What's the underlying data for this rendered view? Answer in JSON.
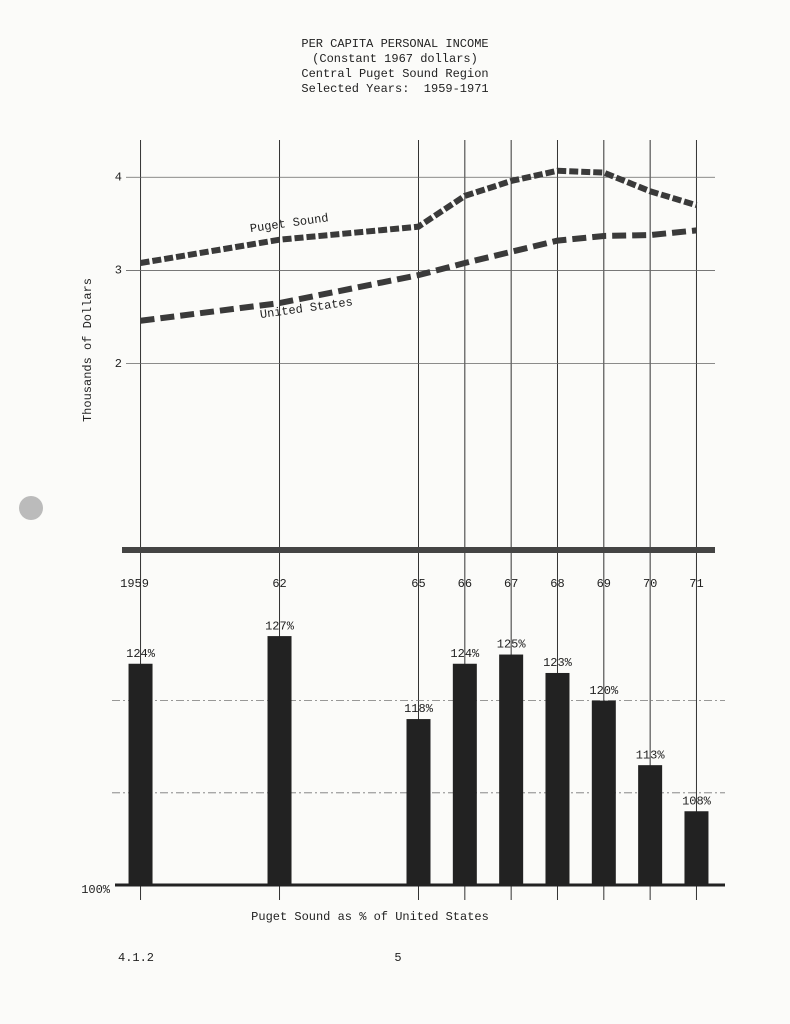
{
  "chart_data": [
    {
      "type": "line",
      "title": "PER CAPITA PERSONAL INCOME",
      "subtitle": [
        "(Constant 1967 dollars)",
        "Central Puget Sound Region",
        "Selected Years:  1959-1971"
      ],
      "ylabel": "Thousands of Dollars",
      "x": [
        1959,
        1962,
        1965,
        1966,
        1967,
        1968,
        1969,
        1970,
        1971
      ],
      "xlim": [
        1958.6,
        1971.4
      ],
      "xticks": [
        1959,
        {
          "value": 1962,
          "label": "62"
        },
        {
          "value": 1965,
          "label": "65"
        },
        {
          "value": 1966,
          "label": "66"
        },
        {
          "value": 1967,
          "label": "67"
        },
        {
          "value": 1968,
          "label": "68"
        },
        {
          "value": 1969,
          "label": "69"
        },
        {
          "value": 1970,
          "label": "70"
        },
        {
          "value": 1971,
          "label": "71"
        }
      ],
      "ylim": [
        0,
        4.4
      ],
      "yticks": [
        2,
        3,
        4
      ],
      "grid": true,
      "series": [
        {
          "name": "Puget Sound",
          "color": "#3a3a3a",
          "values": [
            3.08,
            3.33,
            3.47,
            3.8,
            3.96,
            4.07,
            4.05,
            3.85,
            3.7
          ]
        },
        {
          "name": "United States",
          "color": "#3a3a3a",
          "values": [
            2.46,
            2.65,
            2.95,
            3.08,
            3.2,
            3.32,
            3.37,
            3.38,
            3.43
          ]
        }
      ]
    },
    {
      "type": "bar",
      "xlabel": "Puget Sound as % of United States",
      "x": [
        1959,
        1962,
        1965,
        1966,
        1967,
        1968,
        1969,
        1970,
        1971
      ],
      "xlim": [
        1958.6,
        1971.4
      ],
      "values": [
        124,
        127,
        118,
        124,
        125,
        123,
        120,
        113,
        108
      ],
      "value_labels": [
        "124%",
        "127%",
        "118%",
        "124%",
        "125%",
        "123%",
        "120%",
        "113%",
        "108%"
      ],
      "color": "#222222",
      "ylim": [
        100,
        132
      ],
      "yticks": [
        {
          "value": 100,
          "label": "100%"
        }
      ],
      "ygrid": [
        110,
        120
      ]
    }
  ],
  "footer": {
    "section": "4.1.2",
    "page": "5"
  }
}
